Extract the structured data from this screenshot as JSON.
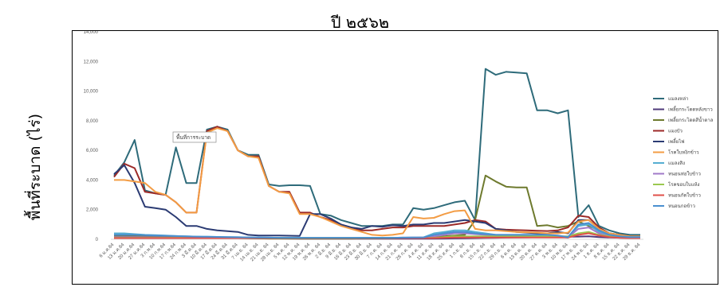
{
  "chart_data": {
    "type": "line",
    "title": "ปี ๒๕๖๒",
    "ylabel": "พื้นที่ระบาด (ไร่)",
    "xlabel": "",
    "ylim": [
      0,
      14000
    ],
    "yticks": [
      "0",
      "2,000",
      "4,000",
      "6,000",
      "8,000",
      "10,000",
      "12,000",
      "14,000"
    ],
    "grid": false,
    "legend_position": "right",
    "tooltip": "พื้นที่การระบาด",
    "categories": [
      "6 ม.ค.64",
      "13 ม.ค.64",
      "20 ม.ค.64",
      "27 ม.ค.64",
      "3 ก.พ.64",
      "10 ก.พ.64",
      "17 ก.พ.64",
      "24 ก.พ.64",
      "3 มี.ค.64",
      "10 มี.ค.64",
      "17 มี.ค.64",
      "24 มี.ค.64",
      "31 มี.ค.64",
      "7 เม.ย. 64",
      "14 เม.ย. 64",
      "21 เม.ย. 64",
      "28 เม.ย. 64",
      "5 พ.ค. 64",
      "12 พ.ค. 64",
      "19 พ.ค. 64",
      "26 พ.ค. 64",
      "2 มิ.ย. 64",
      "9 มิ.ย. 64",
      "16 มิ.ย. 64",
      "23 มิ.ย. 64",
      "30 มิ.ย. 64",
      "7 ก.ค. 64",
      "14 ก.ค. 64",
      "21 ก.ค. 64",
      "28 ก.ค. 64",
      "4 ส.ค. 64",
      "11 ส.ค. 64",
      "18 ส.ค. 64",
      "25 ส.ค. 64",
      "1 ก.ย. 64",
      "8 ก.ย. 64",
      "15 ก.ย. 64",
      "22 ก.ย. 64",
      "29 ก.ย. 64",
      "6 ต.ค. 64",
      "13 ต.ค. 64",
      "20 ต.ค. 64",
      "27 ต.ค. 64",
      "3 พ.ย. 64",
      "10 พ.ย. 64",
      "17 พ.ย. 64",
      "24 พ.ย. 64",
      "1 ธ.ค. 64",
      "8 ธ.ค. 64",
      "15 ธ.ค. 64",
      "22 ธ.ค. 64",
      "29 ธ.ค. 64"
    ],
    "series": [
      {
        "name": "แมลงหล่า",
        "color": "#2e6b7a",
        "values": [
          4300,
          5200,
          6700,
          3300,
          3100,
          3000,
          6200,
          3800,
          3800,
          7400,
          7600,
          7400,
          6000,
          5700,
          5700,
          3700,
          3600,
          3650,
          3650,
          3600,
          1700,
          1600,
          1300,
          1100,
          900,
          900,
          900,
          1000,
          1000,
          2100,
          2000,
          2100,
          2300,
          2500,
          2600,
          1300,
          11500,
          11100,
          11300,
          11250,
          11200,
          8700,
          8700,
          8500,
          8700,
          1500,
          2300,
          900,
          600,
          400,
          300,
          300
        ]
      },
      {
        "name": "เพลี้ยกระโดดหลังขาว",
        "color": "#4f3a7a",
        "values": [
          300,
          300,
          280,
          250,
          230,
          200,
          180,
          150,
          130,
          120,
          110,
          100,
          90,
          80,
          70,
          60,
          55,
          50,
          45,
          40,
          40,
          40,
          40,
          40,
          40,
          40,
          40,
          40,
          40,
          40,
          40,
          40,
          50,
          60,
          70,
          80,
          90,
          100,
          110,
          120,
          130,
          140,
          150,
          160,
          170,
          180,
          200,
          150,
          120,
          100,
          90,
          80
        ]
      },
      {
        "name": "เพลี้ยกระโดดสีน้ำตาล",
        "color": "#6e7a2e",
        "values": [
          200,
          200,
          200,
          180,
          160,
          150,
          140,
          130,
          120,
          110,
          100,
          90,
          80,
          70,
          60,
          50,
          50,
          50,
          50,
          50,
          50,
          50,
          50,
          50,
          60,
          60,
          70,
          70,
          80,
          100,
          120,
          150,
          200,
          250,
          300,
          1300,
          4300,
          3900,
          3550,
          3500,
          3500,
          900,
          950,
          800,
          900,
          1200,
          900,
          600,
          300,
          150,
          100,
          100
        ]
      },
      {
        "name": "แมงบัว",
        "color": "#9c2a28",
        "values": [
          4200,
          5100,
          4800,
          3200,
          3100,
          3000,
          2500,
          1800,
          1800,
          7300,
          7600,
          7300,
          6000,
          5600,
          5600,
          3600,
          3200,
          3200,
          1800,
          1800,
          1500,
          1300,
          1000,
          800,
          600,
          600,
          700,
          800,
          800,
          900,
          900,
          900,
          900,
          1000,
          1100,
          1300,
          1200,
          700,
          650,
          620,
          600,
          580,
          560,
          600,
          800,
          1600,
          1500,
          800,
          400,
          300,
          200,
          200
        ]
      },
      {
        "name": "เพลี้ยไฟ",
        "color": "#2b3b73",
        "values": [
          4400,
          5000,
          3800,
          2200,
          2100,
          2000,
          1500,
          900,
          900,
          700,
          600,
          550,
          500,
          300,
          260,
          250,
          250,
          240,
          230,
          1700,
          1700,
          1400,
          1000,
          800,
          700,
          900,
          850,
          950,
          900,
          1000,
          1000,
          1100,
          1100,
          1200,
          1300,
          1200,
          1100,
          700,
          600,
          500,
          450,
          400,
          400,
          500,
          400,
          1300,
          1300,
          700,
          400,
          300,
          200,
          200
        ]
      },
      {
        "name": "โรคใบหงิกข้าว",
        "color": "#f39c44",
        "values": [
          4000,
          4000,
          3900,
          3800,
          3200,
          3000,
          2500,
          1800,
          1800,
          7200,
          7500,
          7300,
          6000,
          5600,
          5500,
          3600,
          3200,
          3100,
          1700,
          1700,
          1500,
          1200,
          900,
          700,
          500,
          300,
          250,
          300,
          400,
          1500,
          1400,
          1450,
          1700,
          1900,
          1950,
          700,
          600,
          600,
          550,
          500,
          480,
          450,
          400,
          400,
          450,
          1200,
          1300,
          700,
          400,
          300,
          200,
          200
        ]
      },
      {
        "name": "แมลงสิง",
        "color": "#56aed2",
        "values": [
          400,
          400,
          350,
          300,
          280,
          250,
          220,
          200,
          180,
          170,
          160,
          150,
          140,
          130,
          120,
          110,
          100,
          100,
          100,
          100,
          100,
          100,
          100,
          100,
          100,
          100,
          100,
          100,
          110,
          120,
          130,
          400,
          500,
          600,
          600,
          500,
          400,
          300,
          300,
          300,
          300,
          300,
          300,
          200,
          100,
          900,
          1000,
          500,
          300,
          200,
          150,
          150
        ]
      },
      {
        "name": "หนอนห่อใบข้าว",
        "color": "#a07ac8",
        "values": [
          150,
          150,
          150,
          140,
          130,
          120,
          110,
          100,
          100,
          100,
          100,
          100,
          100,
          100,
          100,
          100,
          100,
          100,
          100,
          100,
          100,
          100,
          100,
          100,
          100,
          100,
          100,
          100,
          110,
          120,
          130,
          200,
          300,
          400,
          400,
          350,
          300,
          280,
          260,
          240,
          220,
          200,
          180,
          160,
          140,
          700,
          800,
          400,
          200,
          150,
          120,
          120
        ]
      },
      {
        "name": "โรคขอบใบแห้ง",
        "color": "#9bc84f",
        "values": [
          100,
          100,
          100,
          100,
          100,
          100,
          100,
          100,
          100,
          100,
          100,
          100,
          100,
          100,
          100,
          100,
          100,
          100,
          100,
          100,
          100,
          100,
          100,
          100,
          100,
          100,
          100,
          100,
          100,
          100,
          100,
          100,
          150,
          200,
          200,
          200,
          200,
          200,
          200,
          200,
          200,
          200,
          200,
          200,
          200,
          400,
          500,
          300,
          200,
          150,
          100,
          100
        ]
      },
      {
        "name": "หนอนกัดใบข้าว",
        "color": "#e0504a",
        "values": [
          80,
          80,
          80,
          80,
          80,
          80,
          80,
          80,
          80,
          80,
          80,
          80,
          80,
          80,
          80,
          80,
          80,
          80,
          80,
          80,
          80,
          80,
          80,
          80,
          80,
          80,
          80,
          80,
          80,
          80,
          80,
          80,
          100,
          120,
          120,
          120,
          120,
          120,
          120,
          120,
          120,
          120,
          120,
          120,
          120,
          300,
          400,
          250,
          150,
          100,
          80,
          80
        ]
      },
      {
        "name": "หนอนกอข้าว",
        "color": "#4a8fd0",
        "values": [
          300,
          300,
          300,
          280,
          260,
          240,
          220,
          200,
          180,
          170,
          160,
          150,
          140,
          130,
          120,
          110,
          100,
          100,
          100,
          100,
          100,
          100,
          100,
          100,
          100,
          100,
          100,
          100,
          110,
          120,
          130,
          300,
          400,
          500,
          500,
          400,
          350,
          300,
          300,
          300,
          300,
          300,
          300,
          250,
          150,
          1000,
          1100,
          600,
          300,
          200,
          150,
          150
        ]
      }
    ]
  }
}
